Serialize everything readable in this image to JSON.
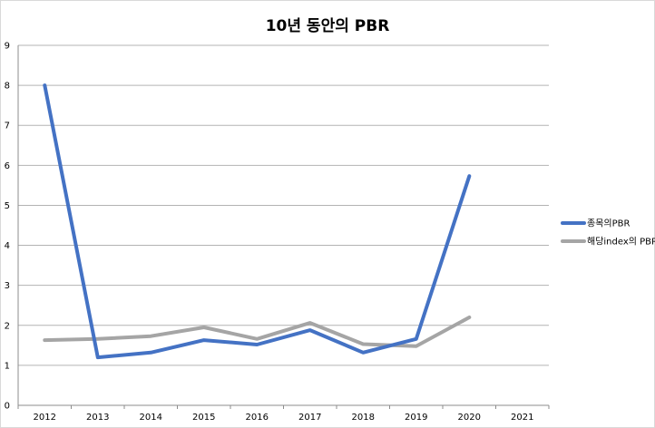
{
  "chart_data": {
    "type": "line",
    "title": "10년 동안의 PBR",
    "xlabel": "",
    "ylabel": "",
    "categories": [
      "2012",
      "2013",
      "2014",
      "2015",
      "2016",
      "2017",
      "2018",
      "2019",
      "2020",
      "2021"
    ],
    "ylim": [
      0,
      9
    ],
    "yticks": [
      0,
      1,
      2,
      3,
      4,
      5,
      6,
      7,
      8,
      9
    ],
    "grid": true,
    "legend_position": "right",
    "series": [
      {
        "name": "종목의PBR",
        "color": "#4472C4",
        "values": [
          8.0,
          1.2,
          1.32,
          1.63,
          1.52,
          1.88,
          1.32,
          1.66,
          5.73,
          null
        ]
      },
      {
        "name": "해당index의 PBR",
        "color": "#A5A5A5",
        "values": [
          1.63,
          1.66,
          1.73,
          1.95,
          1.66,
          2.06,
          1.53,
          1.48,
          2.2,
          null
        ]
      }
    ]
  }
}
